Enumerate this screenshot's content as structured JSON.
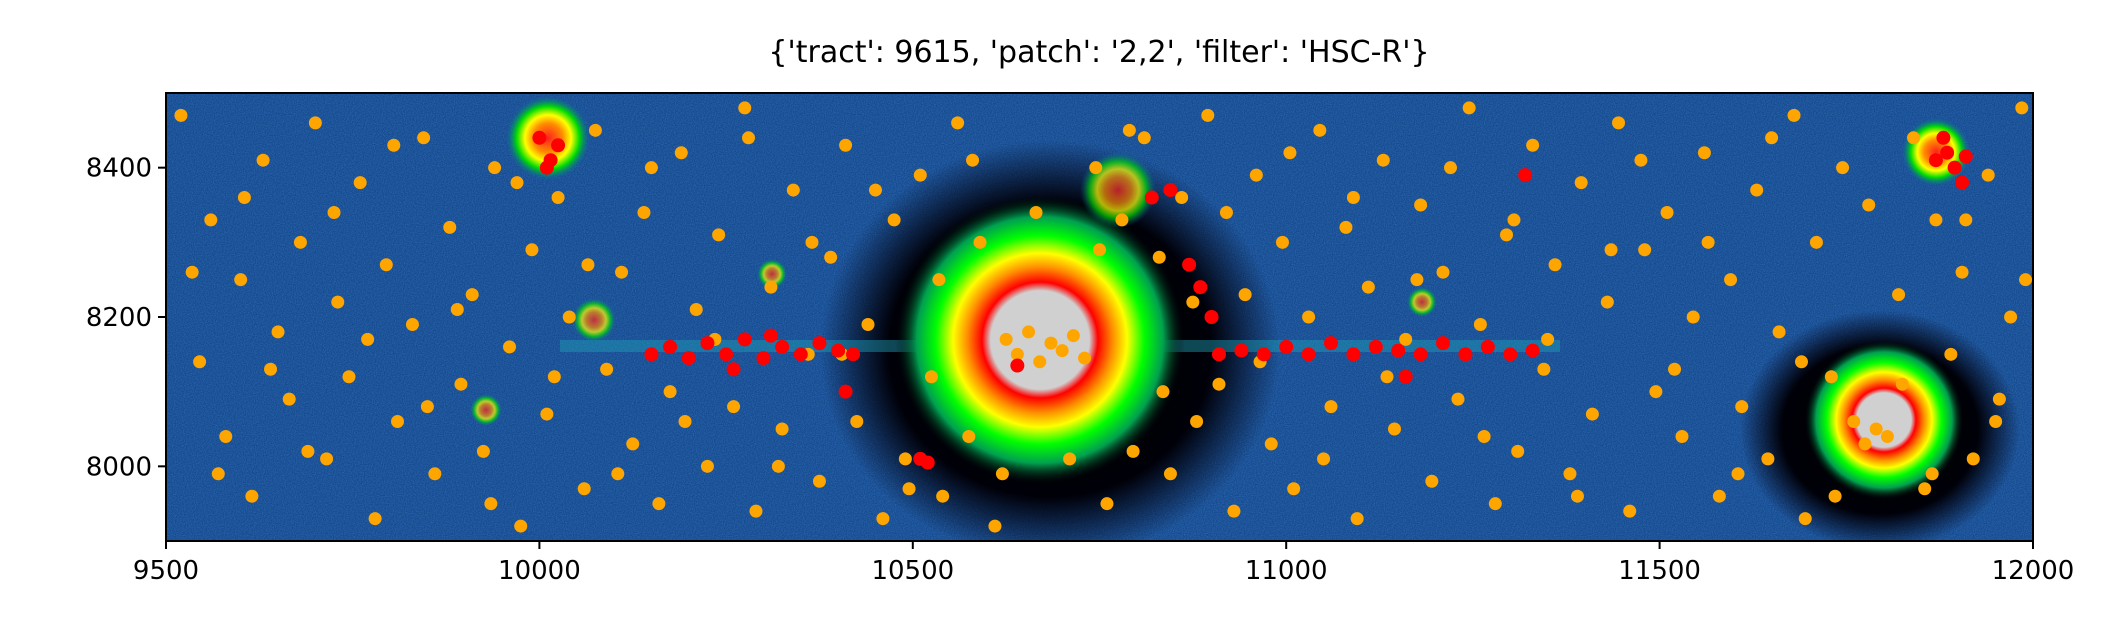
{
  "chart_data": {
    "type": "scatter",
    "title": "{'tract': 9615, 'patch': '2,2', 'filter': 'HSC-R'}",
    "xlabel": "",
    "ylabel": "",
    "xlim": [
      9500,
      12000
    ],
    "ylim": [
      7900,
      8500
    ],
    "x_ticks": [
      9500,
      10000,
      10500,
      11000,
      11500,
      12000
    ],
    "y_ticks": [
      8000,
      8200,
      8400
    ],
    "x_tick_labels": [
      "9500",
      "10000",
      "10500",
      "11000",
      "11500",
      "12000"
    ],
    "y_tick_labels": [
      "8000",
      "8200",
      "8400"
    ],
    "grid": false,
    "legend": "none",
    "background": "false-color image",
    "series": [
      {
        "color": "#ffa500",
        "values": [
          [
            9520,
            8470
          ],
          [
            9545,
            8140
          ],
          [
            9560,
            8330
          ],
          [
            9580,
            8040
          ],
          [
            9600,
            8250
          ],
          [
            9615,
            7960
          ],
          [
            9630,
            8410
          ],
          [
            9650,
            8180
          ],
          [
            9665,
            8090
          ],
          [
            9680,
            8300
          ],
          [
            9700,
            8460
          ],
          [
            9715,
            8010
          ],
          [
            9730,
            8220
          ],
          [
            9745,
            8120
          ],
          [
            9760,
            8380
          ],
          [
            9780,
            7930
          ],
          [
            9795,
            8270
          ],
          [
            9810,
            8060
          ],
          [
            9830,
            8190
          ],
          [
            9845,
            8440
          ],
          [
            9860,
            7990
          ],
          [
            9880,
            8320
          ],
          [
            9895,
            8110
          ],
          [
            9910,
            8230
          ],
          [
            9925,
            8020
          ],
          [
            9940,
            8400
          ],
          [
            9960,
            8160
          ],
          [
            9975,
            7920
          ],
          [
            9990,
            8290
          ],
          [
            10010,
            8070
          ],
          [
            10025,
            8360
          ],
          [
            10040,
            8200
          ],
          [
            10060,
            7970
          ],
          [
            10075,
            8450
          ],
          [
            10090,
            8130
          ],
          [
            10110,
            8260
          ],
          [
            10125,
            8030
          ],
          [
            10140,
            8340
          ],
          [
            10160,
            7950
          ],
          [
            10175,
            8100
          ],
          [
            10190,
            8420
          ],
          [
            10210,
            8210
          ],
          [
            10225,
            8000
          ],
          [
            10240,
            8310
          ],
          [
            10260,
            8080
          ],
          [
            10275,
            8480
          ],
          [
            10290,
            7940
          ],
          [
            10310,
            8240
          ],
          [
            10325,
            8050
          ],
          [
            10340,
            8370
          ],
          [
            10360,
            8150
          ],
          [
            10375,
            7980
          ],
          [
            10390,
            8280
          ],
          [
            10410,
            8430
          ],
          [
            10425,
            8060
          ],
          [
            10440,
            8190
          ],
          [
            10460,
            7930
          ],
          [
            10475,
            8330
          ],
          [
            10490,
            8010
          ],
          [
            10510,
            8390
          ],
          [
            10525,
            8120
          ],
          [
            10540,
            7960
          ],
          [
            10560,
            8460
          ],
          [
            10575,
            8040
          ],
          [
            10590,
            8300
          ],
          [
            10610,
            7920
          ],
          [
            10625,
            8170
          ],
          [
            10640,
            8150
          ],
          [
            10655,
            8180
          ],
          [
            10670,
            8140
          ],
          [
            10685,
            8165
          ],
          [
            10700,
            8155
          ],
          [
            10715,
            8175
          ],
          [
            10730,
            8145
          ],
          [
            10745,
            8400
          ],
          [
            10760,
            7950
          ],
          [
            10780,
            8330
          ],
          [
            10795,
            8020
          ],
          [
            10810,
            8440
          ],
          [
            10830,
            8280
          ],
          [
            10845,
            7990
          ],
          [
            10860,
            8360
          ],
          [
            10880,
            8060
          ],
          [
            10895,
            8470
          ],
          [
            10910,
            8110
          ],
          [
            10930,
            7940
          ],
          [
            10945,
            8230
          ],
          [
            10960,
            8390
          ],
          [
            10980,
            8030
          ],
          [
            10995,
            8300
          ],
          [
            11010,
            7970
          ],
          [
            11030,
            8200
          ],
          [
            11045,
            8450
          ],
          [
            11060,
            8080
          ],
          [
            11080,
            8320
          ],
          [
            11095,
            7930
          ],
          [
            11110,
            8240
          ],
          [
            11130,
            8410
          ],
          [
            11145,
            8050
          ],
          [
            11160,
            8170
          ],
          [
            11180,
            8350
          ],
          [
            11195,
            7980
          ],
          [
            11210,
            8260
          ],
          [
            11230,
            8090
          ],
          [
            11245,
            8480
          ],
          [
            11260,
            8190
          ],
          [
            11280,
            7950
          ],
          [
            11295,
            8310
          ],
          [
            11310,
            8020
          ],
          [
            11330,
            8430
          ],
          [
            11345,
            8130
          ],
          [
            11360,
            8270
          ],
          [
            11380,
            7990
          ],
          [
            11395,
            8380
          ],
          [
            11410,
            8070
          ],
          [
            11430,
            8220
          ],
          [
            11445,
            8460
          ],
          [
            11460,
            7940
          ],
          [
            11480,
            8290
          ],
          [
            11495,
            8100
          ],
          [
            11510,
            8340
          ],
          [
            11530,
            8040
          ],
          [
            11545,
            8200
          ],
          [
            11560,
            8420
          ],
          [
            11580,
            7960
          ],
          [
            11595,
            8250
          ],
          [
            11610,
            8080
          ],
          [
            11630,
            8370
          ],
          [
            11645,
            8010
          ],
          [
            11660,
            8180
          ],
          [
            11680,
            8470
          ],
          [
            11695,
            7930
          ],
          [
            11710,
            8300
          ],
          [
            11730,
            8120
          ],
          [
            11745,
            8400
          ],
          [
            11760,
            8060
          ],
          [
            11775,
            8030
          ],
          [
            11790,
            8050
          ],
          [
            11805,
            8040
          ],
          [
            11820,
            8230
          ],
          [
            11840,
            8440
          ],
          [
            11855,
            7970
          ],
          [
            11870,
            8330
          ],
          [
            11890,
            8150
          ],
          [
            11905,
            8260
          ],
          [
            11920,
            8010
          ],
          [
            11940,
            8390
          ],
          [
            11955,
            8090
          ],
          [
            11970,
            8200
          ],
          [
            11985,
            8480
          ],
          [
            9535,
            8260
          ],
          [
            9570,
            7990
          ],
          [
            9605,
            8360
          ],
          [
            9640,
            8130
          ],
          [
            9690,
            8020
          ],
          [
            9725,
            8340
          ],
          [
            9770,
            8170
          ],
          [
            9805,
            8430
          ],
          [
            9850,
            8080
          ],
          [
            9890,
            8210
          ],
          [
            9935,
            7950
          ],
          [
            9970,
            8380
          ],
          [
            10020,
            8120
          ],
          [
            10065,
            8270
          ],
          [
            10105,
            7990
          ],
          [
            10150,
            8400
          ],
          [
            10195,
            8060
          ],
          [
            10235,
            8170
          ],
          [
            10280,
            8440
          ],
          [
            10320,
            8000
          ],
          [
            10365,
            8300
          ],
          [
            10405,
            8150
          ],
          [
            10450,
            8370
          ],
          [
            10495,
            7970
          ],
          [
            10535,
            8250
          ],
          [
            10580,
            8410
          ],
          [
            10620,
            7990
          ],
          [
            10665,
            8340
          ],
          [
            10710,
            8010
          ],
          [
            10750,
            8290
          ],
          [
            10790,
            8450
          ],
          [
            10835,
            8100
          ],
          [
            10875,
            8220
          ],
          [
            10920,
            8340
          ],
          [
            10965,
            8140
          ],
          [
            11005,
            8420
          ],
          [
            11050,
            8010
          ],
          [
            11090,
            8360
          ],
          [
            11135,
            8120
          ],
          [
            11175,
            8250
          ],
          [
            11220,
            8400
          ],
          [
            11265,
            8040
          ],
          [
            11305,
            8330
          ],
          [
            11350,
            8170
          ],
          [
            11390,
            7960
          ],
          [
            11435,
            8290
          ],
          [
            11475,
            8410
          ],
          [
            11520,
            8130
          ],
          [
            11565,
            8300
          ],
          [
            11605,
            7990
          ],
          [
            11650,
            8440
          ],
          [
            11690,
            8140
          ],
          [
            11735,
            7960
          ],
          [
            11780,
            8350
          ],
          [
            11825,
            8110
          ],
          [
            11865,
            7990
          ],
          [
            11910,
            8330
          ],
          [
            11950,
            8060
          ],
          [
            11990,
            8250
          ]
        ]
      },
      {
        "color": "#ff0000",
        "values": [
          [
            10000,
            8440
          ],
          [
            10010,
            8400
          ],
          [
            10025,
            8430
          ],
          [
            10015,
            8410
          ],
          [
            10150,
            8150
          ],
          [
            10175,
            8160
          ],
          [
            10200,
            8145
          ],
          [
            10225,
            8165
          ],
          [
            10250,
            8150
          ],
          [
            10275,
            8170
          ],
          [
            10300,
            8145
          ],
          [
            10325,
            8160
          ],
          [
            10350,
            8150
          ],
          [
            10375,
            8165
          ],
          [
            10400,
            8155
          ],
          [
            10420,
            8150
          ],
          [
            10260,
            8130
          ],
          [
            10310,
            8175
          ],
          [
            10410,
            8100
          ],
          [
            10510,
            8010
          ],
          [
            10520,
            8005
          ],
          [
            10640,
            8135
          ],
          [
            10820,
            8360
          ],
          [
            10845,
            8370
          ],
          [
            10870,
            8270
          ],
          [
            10885,
            8240
          ],
          [
            10900,
            8200
          ],
          [
            10910,
            8150
          ],
          [
            10940,
            8155
          ],
          [
            10970,
            8150
          ],
          [
            11000,
            8160
          ],
          [
            11030,
            8150
          ],
          [
            11060,
            8165
          ],
          [
            11090,
            8150
          ],
          [
            11120,
            8160
          ],
          [
            11150,
            8155
          ],
          [
            11180,
            8150
          ],
          [
            11210,
            8165
          ],
          [
            11240,
            8150
          ],
          [
            11270,
            8160
          ],
          [
            11300,
            8150
          ],
          [
            11330,
            8155
          ],
          [
            11160,
            8120
          ],
          [
            11320,
            8390
          ],
          [
            11870,
            8410
          ],
          [
            11885,
            8420
          ],
          [
            11895,
            8400
          ],
          [
            11910,
            8415
          ],
          [
            11905,
            8380
          ],
          [
            11880,
            8440
          ]
        ]
      }
    ]
  }
}
